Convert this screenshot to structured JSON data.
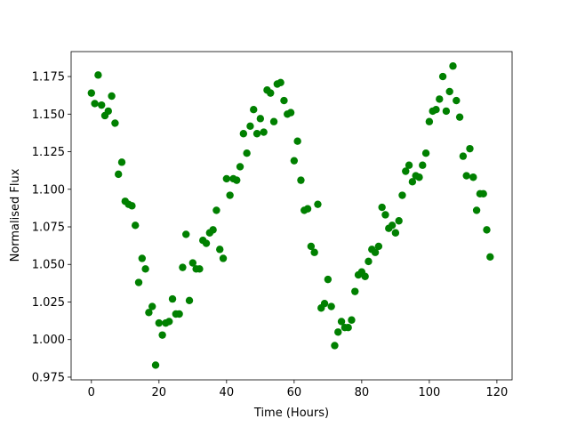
{
  "chart_data": {
    "type": "scatter",
    "xlabel": "Time (Hours)",
    "ylabel": "Normalised Flux",
    "color": "#008000",
    "x": [
      0,
      1,
      2,
      3,
      4,
      5,
      6,
      7,
      8,
      9,
      10,
      11,
      12,
      13,
      14,
      15,
      16,
      17,
      18,
      19,
      20,
      21,
      22,
      23,
      24,
      25,
      26,
      27,
      28,
      29,
      30,
      31,
      32,
      33,
      34,
      35,
      36,
      37,
      38,
      39,
      40,
      41,
      42,
      43,
      44,
      45,
      46,
      47,
      48,
      49,
      50,
      51,
      52,
      53,
      54,
      55,
      56,
      57,
      58,
      59,
      60,
      61,
      62,
      63,
      64,
      65,
      66,
      67,
      68,
      69,
      70,
      71,
      72,
      73,
      74,
      75,
      76,
      77,
      78,
      79,
      80,
      81,
      82,
      83,
      84,
      85,
      86,
      87,
      88,
      89,
      90,
      91,
      92,
      93,
      94,
      95,
      96,
      97,
      98,
      99,
      100,
      101,
      102,
      103,
      104,
      105,
      106,
      107,
      108,
      109,
      110,
      111,
      112,
      113,
      114,
      115,
      116,
      117,
      118
    ],
    "values": [
      1.164,
      1.157,
      1.176,
      1.156,
      1.149,
      1.152,
      1.162,
      1.144,
      1.11,
      1.118,
      1.092,
      1.09,
      1.089,
      1.076,
      1.038,
      1.054,
      1.047,
      1.018,
      1.022,
      0.983,
      1.011,
      1.003,
      1.011,
      1.012,
      1.027,
      1.017,
      1.017,
      1.048,
      1.07,
      1.026,
      1.051,
      1.047,
      1.047,
      1.066,
      1.064,
      1.071,
      1.073,
      1.086,
      1.06,
      1.054,
      1.107,
      1.096,
      1.107,
      1.106,
      1.115,
      1.137,
      1.124,
      1.142,
      1.153,
      1.137,
      1.147,
      1.138,
      1.166,
      1.164,
      1.145,
      1.17,
      1.171,
      1.159,
      1.15,
      1.151,
      1.119,
      1.132,
      1.106,
      1.086,
      1.087,
      1.062,
      1.058,
      1.09,
      1.021,
      1.024,
      1.04,
      1.022,
      0.996,
      1.005,
      1.012,
      1.008,
      1.008,
      1.013,
      1.032,
      1.043,
      1.045,
      1.042,
      1.052,
      1.06,
      1.058,
      1.062,
      1.088,
      1.083,
      1.074,
      1.076,
      1.071,
      1.079,
      1.096,
      1.112,
      1.116,
      1.105,
      1.109,
      1.108,
      1.116,
      1.124,
      1.145,
      1.152,
      1.153,
      1.16,
      1.175,
      1.152,
      1.165,
      1.182,
      1.159,
      1.148,
      1.122,
      1.109,
      1.127,
      1.108,
      1.086,
      1.097,
      1.097,
      1.073,
      1.055
    ],
    "xlim": [
      -6,
      124.5
    ],
    "ylim": [
      0.9732,
      1.1916
    ],
    "xticks": [
      0,
      20,
      40,
      60,
      80,
      100,
      120
    ],
    "yticks": [
      0.975,
      {
        "value": 1.0,
        "label": "1.000"
      },
      1.025,
      {
        "value": 1.05,
        "label": "1.050"
      },
      1.075,
      {
        "value": 1.1,
        "label": "1.100"
      },
      1.125,
      {
        "value": 1.15,
        "label": "1.150"
      },
      1.175
    ]
  }
}
